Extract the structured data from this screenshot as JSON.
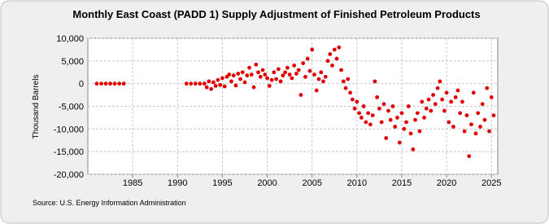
{
  "chart_data": {
    "type": "scatter",
    "title": "Monthly East Coast (PADD 1) Supply Adjustment of Finished Petroleum Products",
    "y_label": "Thousand Barrels",
    "source": "Source: U.S. Energy Information Administration",
    "color": "#e00000",
    "grid": true,
    "xlim": [
      1980,
      2025.7
    ],
    "xticks": [
      1985,
      1990,
      1995,
      2000,
      2005,
      2010,
      2015,
      2020,
      2025
    ],
    "ylim": [
      -20000,
      10000
    ],
    "yticks": [
      {
        "value": -20000,
        "label": "-20,000"
      },
      {
        "value": -15000,
        "label": "-15,000"
      },
      {
        "value": -10000,
        "label": "-10,000"
      },
      {
        "value": -5000,
        "label": "-5,000"
      },
      0,
      {
        "value": 5000,
        "label": "5,000"
      },
      {
        "value": 10000,
        "label": "10,000"
      }
    ],
    "x": [
      1981,
      1981.5,
      1982,
      1982.5,
      1983,
      1983.5,
      1984,
      1991,
      1991.5,
      1992,
      1992.5,
      1993,
      1993.25,
      1993.5,
      1993.75,
      1994,
      1994.25,
      1994.5,
      1994.75,
      1995,
      1995.25,
      1995.5,
      1995.75,
      1996,
      1996.25,
      1996.5,
      1996.75,
      1997,
      1997.25,
      1997.5,
      1997.75,
      1998,
      1998.25,
      1998.5,
      1998.75,
      1999,
      1999.25,
      1999.5,
      1999.75,
      2000,
      2000.25,
      2000.5,
      2000.75,
      2001,
      2001.25,
      2001.5,
      2001.75,
      2002,
      2002.25,
      2002.5,
      2002.75,
      2003,
      2003.25,
      2003.5,
      2003.75,
      2004,
      2004.25,
      2004.5,
      2004.75,
      2005,
      2005.25,
      2005.5,
      2005.75,
      2006,
      2006.25,
      2006.5,
      2006.75,
      2007,
      2007.25,
      2007.5,
      2007.75,
      2008,
      2008.25,
      2008.5,
      2008.75,
      2009,
      2009.25,
      2009.5,
      2009.75,
      2010,
      2010.25,
      2010.5,
      2010.75,
      2011,
      2011.25,
      2011.5,
      2011.75,
      2012,
      2012.25,
      2012.5,
      2012.75,
      2013,
      2013.25,
      2013.5,
      2013.75,
      2014,
      2014.25,
      2014.5,
      2014.75,
      2015,
      2015.25,
      2015.5,
      2015.75,
      2016,
      2016.25,
      2016.5,
      2016.75,
      2017,
      2017.25,
      2017.5,
      2017.75,
      2018,
      2018.25,
      2018.5,
      2018.75,
      2019,
      2019.25,
      2019.5,
      2019.75,
      2020,
      2020.25,
      2020.5,
      2020.75,
      2021,
      2021.25,
      2021.5,
      2021.75,
      2022,
      2022.25,
      2022.5,
      2022.75,
      2023,
      2023.25,
      2023.5,
      2023.75,
      2024,
      2024.25,
      2024.5,
      2024.75,
      2025,
      2025.25
    ],
    "values": [
      0,
      0,
      0,
      0,
      0,
      0,
      0,
      0,
      0,
      0,
      0,
      0,
      -800,
      500,
      -1200,
      300,
      -500,
      800,
      -300,
      1200,
      -600,
      1500,
      2000,
      500,
      1800,
      -400,
      2200,
      1000,
      2500,
      300,
      1800,
      3500,
      2000,
      -800,
      4200,
      2500,
      1500,
      3000,
      2000,
      1200,
      -500,
      800,
      2500,
      1000,
      3200,
      500,
      1800,
      2500,
      3500,
      2000,
      1200,
      4000,
      2200,
      3000,
      -2500,
      4500,
      1500,
      5500,
      2800,
      7500,
      2000,
      -1500,
      1000,
      2500,
      500,
      1500,
      5000,
      6500,
      4000,
      7500,
      5500,
      8000,
      3000,
      500,
      -1000,
      1000,
      -2000,
      -3500,
      -5500,
      -4000,
      -6500,
      -7500,
      -5000,
      -8500,
      -6500,
      -9000,
      -7000,
      500,
      -3000,
      -5500,
      -8500,
      -4500,
      -12000,
      -6000,
      -8000,
      -5000,
      -9500,
      -7500,
      -13000,
      -6500,
      -10000,
      -8500,
      -5000,
      -11000,
      -14500,
      -8000,
      -6500,
      -10500,
      -4000,
      -7500,
      -5500,
      -3500,
      -6000,
      -2500,
      -4500,
      -1000,
      500,
      -3500,
      -6000,
      -2000,
      -8500,
      -4000,
      -9500,
      -3000,
      -1500,
      -6500,
      -4000,
      -10500,
      -7000,
      -16000,
      -9000,
      -2000,
      -11000,
      -6500,
      -9500,
      -4500,
      -8000,
      -1000,
      -10500,
      -3000,
      -7000
    ]
  }
}
